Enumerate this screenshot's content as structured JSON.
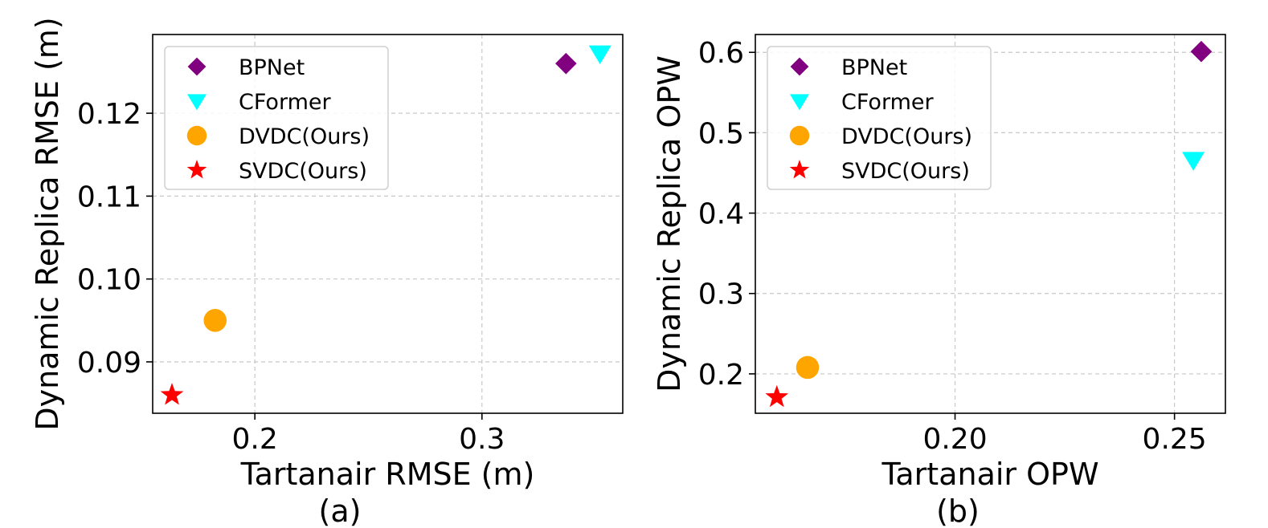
{
  "chart_data": [
    {
      "type": "scatter",
      "xlabel": "Tartanair RMSE (m)",
      "ylabel": "Dynamic Replica RMSE (m)",
      "caption": "(a)",
      "xlim": [
        0.155,
        0.362
      ],
      "ylim": [
        0.0838,
        0.1295
      ],
      "xticks": [
        0.2,
        0.3
      ],
      "xtick_labels": [
        "0.2",
        "0.3"
      ],
      "yticks": [
        0.09,
        0.1,
        0.11,
        0.12
      ],
      "ytick_labels": [
        "0.09",
        "0.10",
        "0.11",
        "0.12"
      ],
      "grid": true,
      "legend_position": "top-left",
      "series": [
        {
          "name": "BPNet",
          "marker": "diamond",
          "color": "#800080",
          "x": [
            0.337
          ],
          "y": [
            0.126
          ]
        },
        {
          "name": "CFormer",
          "marker": "triangle-down",
          "color": "#00FFFF",
          "x": [
            0.352
          ],
          "y": [
            0.1272
          ]
        },
        {
          "name": "DVDC(Ours)",
          "marker": "circle",
          "color": "#FFA500",
          "x": [
            0.1825
          ],
          "y": [
            0.095
          ]
        },
        {
          "name": "SVDC(Ours)",
          "marker": "star",
          "color": "#FF0000",
          "x": [
            0.1635
          ],
          "y": [
            0.086
          ]
        }
      ]
    },
    {
      "type": "scatter",
      "xlabel": "Tartanair OPW",
      "ylabel": "Dynamic Replica OPW",
      "caption": "(b)",
      "xlim": [
        0.1545,
        0.2616
      ],
      "ylim": [
        0.151,
        0.6222
      ],
      "xticks": [
        0.2,
        0.25
      ],
      "xtick_labels": [
        "0.20",
        "0.25"
      ],
      "yticks": [
        0.2,
        0.3,
        0.4,
        0.5,
        0.6
      ],
      "ytick_labels": [
        "0.2",
        "0.3",
        "0.4",
        "0.5",
        "0.6"
      ],
      "grid": true,
      "legend_position": "top-left",
      "series": [
        {
          "name": "BPNet",
          "marker": "diamond",
          "color": "#800080",
          "x": [
            0.2561
          ],
          "y": [
            0.601
          ]
        },
        {
          "name": "CFormer",
          "marker": "triangle-down",
          "color": "#00FFFF",
          "x": [
            0.2543
          ],
          "y": [
            0.466
          ]
        },
        {
          "name": "DVDC(Ours)",
          "marker": "circle",
          "color": "#FFA500",
          "x": [
            0.1664
          ],
          "y": [
            0.208
          ]
        },
        {
          "name": "SVDC(Ours)",
          "marker": "star",
          "color": "#FF0000",
          "x": [
            0.1594
          ],
          "y": [
            0.171
          ]
        }
      ]
    }
  ]
}
